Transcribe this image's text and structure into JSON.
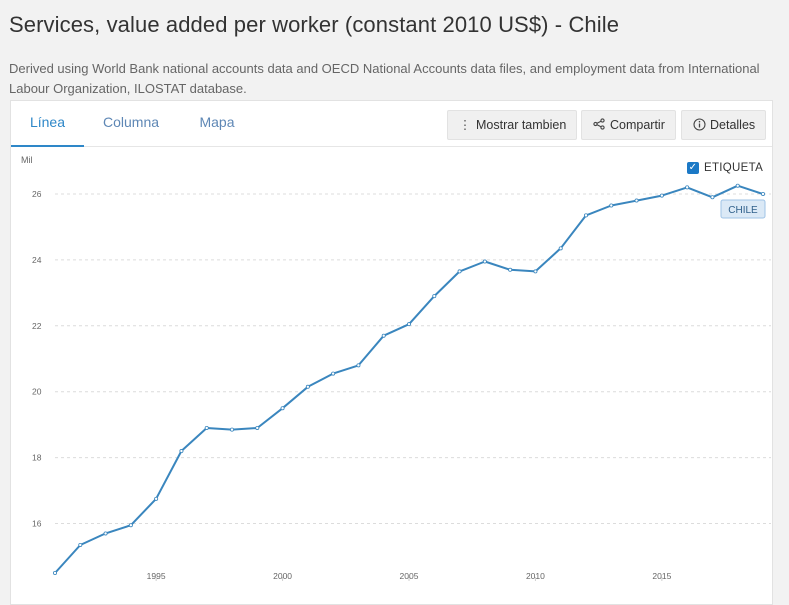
{
  "title": "Services, value added per worker (constant 2010 US$) - Chile",
  "description": "Derived using World Bank national accounts data and OECD National Accounts data files, and employment data from International Labour Organization, ILOSTAT database.",
  "tabs": [
    {
      "label": "Línea",
      "active": true
    },
    {
      "label": "Columna",
      "active": false
    },
    {
      "label": "Mapa",
      "active": false
    }
  ],
  "buttons": {
    "show_also": "Mostrar tambien",
    "share": "Compartir",
    "details": "Detalles"
  },
  "icons": {
    "show_also": "vertical-dots-icon",
    "share": "share-icon",
    "details": "info-icon"
  },
  "legend_toggle": {
    "label": "ETIQUETA",
    "checked": true
  },
  "colors": {
    "line": "#3a86be",
    "accent": "#2e87c8",
    "label_bg": "#dbe9f6"
  },
  "chart_data": {
    "type": "line",
    "ylabel": "Mil",
    "xlim": [
      1991,
      2019
    ],
    "ylim": [
      14.5,
      27
    ],
    "x_ticks": [
      1995,
      2000,
      2005,
      2010,
      2015
    ],
    "y_ticks": [
      16,
      18,
      20,
      22,
      24,
      26
    ],
    "grid": true,
    "series": [
      {
        "name": "CHILE",
        "x": [
          1991,
          1992,
          1993,
          1994,
          1995,
          1996,
          1997,
          1998,
          1999,
          2000,
          2001,
          2002,
          2003,
          2004,
          2005,
          2006,
          2007,
          2008,
          2009,
          2010,
          2011,
          2012,
          2013,
          2014,
          2015,
          2016,
          2017,
          2018,
          2019
        ],
        "values": [
          14.5,
          15.35,
          15.7,
          15.95,
          16.75,
          18.2,
          18.9,
          18.85,
          18.9,
          19.5,
          20.15,
          20.55,
          20.8,
          21.7,
          22.05,
          22.9,
          23.65,
          23.95,
          23.7,
          23.65,
          24.35,
          25.35,
          25.65,
          25.8,
          25.95,
          26.2,
          25.9,
          26.25,
          26.0
        ]
      }
    ]
  }
}
